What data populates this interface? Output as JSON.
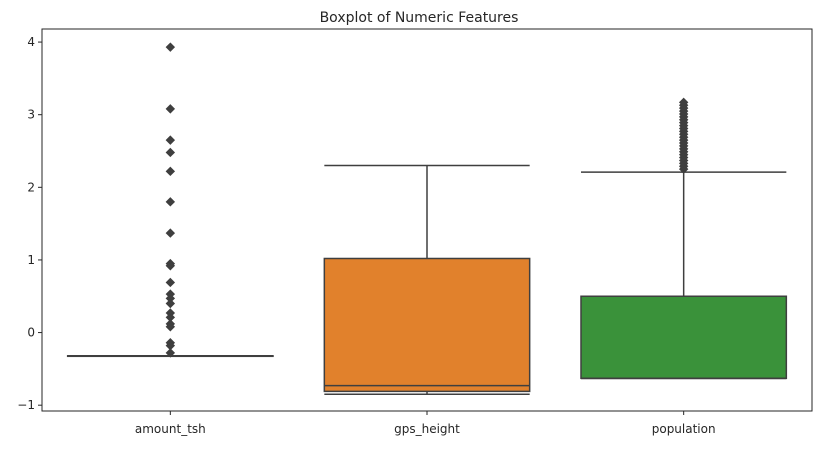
{
  "chart_data": {
    "type": "box",
    "title": "Boxplot of Numeric Features",
    "xlabel": "",
    "ylabel": "",
    "ylim": [
      -1.08,
      4.18
    ],
    "yticks": [
      -1,
      0,
      1,
      2,
      3,
      4
    ],
    "grid": false,
    "categories": [
      "amount_tsh",
      "gps_height",
      "population"
    ],
    "series": [
      {
        "category": "amount_tsh",
        "color": "#3a75af",
        "whisker_low": -0.32,
        "q1": -0.32,
        "median": -0.32,
        "q3": -0.32,
        "whisker_high": -0.32,
        "outliers": [
          3.93,
          3.08,
          2.65,
          2.48,
          2.22,
          1.8,
          1.37,
          0.95,
          0.92,
          0.69,
          0.53,
          0.47,
          0.4,
          0.27,
          0.21,
          0.12,
          0.08,
          -0.14,
          -0.18,
          -0.28
        ]
      },
      {
        "category": "gps_height",
        "color": "#e1812c",
        "whisker_low": -0.85,
        "q1": -0.81,
        "median": -0.73,
        "q3": 1.02,
        "whisker_high": 2.3,
        "outliers": []
      },
      {
        "category": "population",
        "color": "#3a923a",
        "whisker_low": -0.63,
        "q1": -0.63,
        "median": -0.63,
        "q3": 0.5,
        "whisker_high": 2.21,
        "outliers": [
          2.25,
          2.29,
          2.33,
          2.37,
          2.41,
          2.45,
          2.49,
          2.53,
          2.57,
          2.61,
          2.65,
          2.69,
          2.73,
          2.77,
          2.81,
          2.85,
          2.89,
          2.93,
          2.97,
          3.01,
          3.05,
          3.09,
          3.13,
          3.17
        ]
      }
    ]
  }
}
